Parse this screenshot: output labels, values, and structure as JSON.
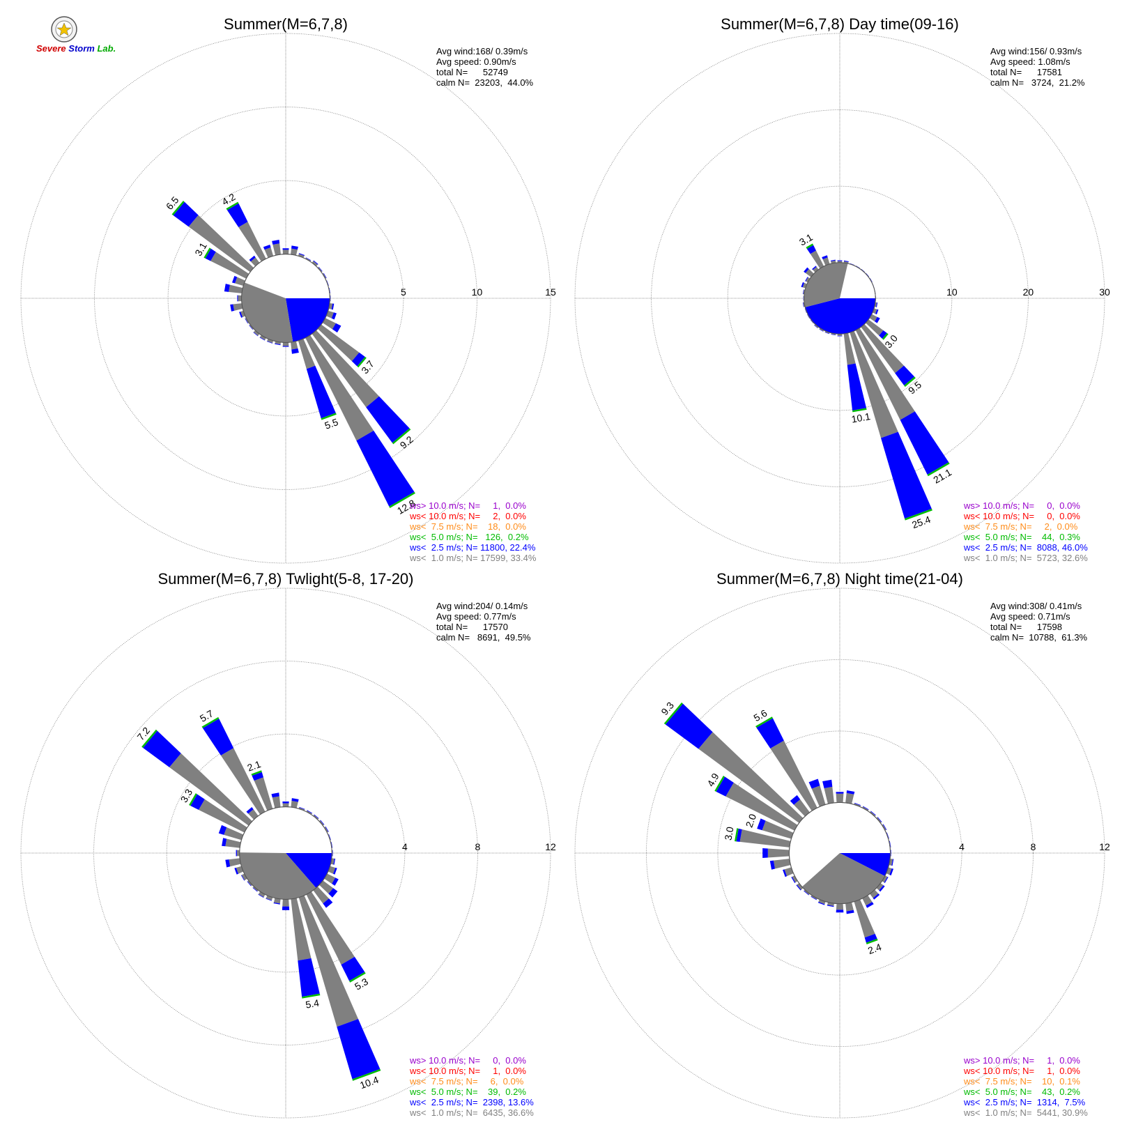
{
  "logo": {
    "line1": "Severe",
    "line2": "Storm",
    "line3": "Lab."
  },
  "colors": {
    "gt10": "#9900cc",
    "lt10": "#ff0000",
    "lt7_5": "#ff8c1a",
    "lt5": "#00bb00",
    "lt2_5": "#0000ff",
    "lt1": "#808080",
    "grid": "#777777"
  },
  "chart_data": [
    {
      "type": "windrose",
      "title": "Summer(M=6,7,8)",
      "rings": [
        5,
        10,
        15
      ],
      "rmax": 15,
      "calm_pct": 44.0,
      "stats": [
        "Avg wind:168/ 0.39m/s",
        "Avg speed: 0.90m/s",
        "total N=      52749",
        "calm N=  23203,  44.0%"
      ],
      "legend": [
        "ws> 10.0 m/s; N=     1,  0.0%",
        "ws< 10.0 m/s; N=     2,  0.0%",
        "ws<  7.5 m/s; N=    18,  0.0%",
        "ws<  5.0 m/s; N=   126,  0.2%",
        "ws<  2.5 m/s; N= 11800, 22.4%",
        "ws<  1.0 m/s; N= 17599, 33.4%"
      ],
      "petals": [
        {
          "dir": 0,
          "total": 0.4,
          "blue": 0.1
        },
        {
          "dir": 10,
          "total": 0.6,
          "blue": 0.2
        },
        {
          "dir": 20,
          "total": 0.2,
          "blue": 0.05
        },
        {
          "dir": 30,
          "total": 0.1,
          "blue": 0.03
        },
        {
          "dir": 40,
          "total": 0.2,
          "blue": 0.05
        },
        {
          "dir": 50,
          "total": 0.1,
          "blue": 0.03
        },
        {
          "dir": 60,
          "total": 0.1,
          "blue": 0.03
        },
        {
          "dir": 70,
          "total": 0.05,
          "blue": 0.02
        },
        {
          "dir": 80,
          "total": 0.05,
          "blue": 0.02
        },
        {
          "dir": 90,
          "total": 0.05,
          "blue": 0.02
        },
        {
          "dir": 100,
          "total": 0.3,
          "blue": 0.1
        },
        {
          "dir": 110,
          "total": 0.6,
          "blue": 0.2
        },
        {
          "dir": 120,
          "total": 1.2,
          "blue": 0.4
        },
        {
          "dir": 130,
          "total": 3.7,
          "blue": 0.5
        },
        {
          "dir": 140,
          "total": 9.2,
          "blue": 3.0
        },
        {
          "dir": 150,
          "total": 12.8,
          "blue": 5.0
        },
        {
          "dir": 160,
          "total": 5.5,
          "blue": 3.5
        },
        {
          "dir": 170,
          "total": 0.8,
          "blue": 0.3
        },
        {
          "dir": 180,
          "total": 0.3,
          "blue": 0.05
        },
        {
          "dir": 190,
          "total": 0.2,
          "blue": 0.05
        },
        {
          "dir": 200,
          "total": 0.2,
          "blue": 0.03
        },
        {
          "dir": 210,
          "total": 0.2,
          "blue": 0.03
        },
        {
          "dir": 220,
          "total": 0.2,
          "blue": 0.03
        },
        {
          "dir": 230,
          "total": 0.1,
          "blue": 0.03
        },
        {
          "dir": 240,
          "total": 0.1,
          "blue": 0.03
        },
        {
          "dir": 250,
          "total": 0.3,
          "blue": 0.1
        },
        {
          "dir": 260,
          "total": 0.8,
          "blue": 0.2
        },
        {
          "dir": 270,
          "total": 0.3,
          "blue": 0.05
        },
        {
          "dir": 280,
          "total": 1.2,
          "blue": 0.3
        },
        {
          "dir": 290,
          "total": 0.8,
          "blue": 0.2
        },
        {
          "dir": 300,
          "total": 3.1,
          "blue": 0.4
        },
        {
          "dir": 310,
          "total": 6.5,
          "blue": 1.3
        },
        {
          "dir": 320,
          "total": 0.6,
          "blue": 0.15
        },
        {
          "dir": 330,
          "total": 4.2,
          "blue": 1.4
        },
        {
          "dir": 340,
          "total": 0.8,
          "blue": 0.2
        },
        {
          "dir": 350,
          "total": 1.0,
          "blue": 0.25
        }
      ],
      "labels": [
        {
          "dir": 310,
          "text": "6.5"
        },
        {
          "dir": 330,
          "text": "4.2"
        },
        {
          "dir": 300,
          "text": "3.1"
        },
        {
          "dir": 130,
          "text": "3.7"
        },
        {
          "dir": 140,
          "text": "9.2"
        },
        {
          "dir": 150,
          "text": "12.8"
        },
        {
          "dir": 160,
          "text": "5.5"
        }
      ],
      "calm_pie": {
        "blue_pct": 22.4,
        "gray_pct": 33.4
      }
    },
    {
      "type": "windrose",
      "title": "Summer(M=6,7,8) Day time(09-16)",
      "rings": [
        10,
        20,
        30
      ],
      "rmax": 30,
      "calm_pct": 21.2,
      "stats": [
        "Avg wind:156/ 0.93m/s",
        "Avg speed: 1.08m/s",
        "total N=      17581",
        "calm N=   3724,  21.2%"
      ],
      "legend": [
        "ws> 10.0 m/s; N=     0,  0.0%",
        "ws< 10.0 m/s; N=     0,  0.0%",
        "ws<  7.5 m/s; N=     2,  0.0%",
        "ws<  5.0 m/s; N=    44,  0.3%",
        "ws<  2.5 m/s; N=  8088, 46.0%",
        "ws<  1.0 m/s; N=  5723, 32.6%"
      ],
      "petals": [
        {
          "dir": 0,
          "total": 0.3,
          "blue": 0.1
        },
        {
          "dir": 10,
          "total": 0.3,
          "blue": 0.1
        },
        {
          "dir": 20,
          "total": 0.1,
          "blue": 0.03
        },
        {
          "dir": 30,
          "total": 0.1,
          "blue": 0.03
        },
        {
          "dir": 40,
          "total": 0.1,
          "blue": 0.03
        },
        {
          "dir": 50,
          "total": 0.1,
          "blue": 0.03
        },
        {
          "dir": 60,
          "total": 0.1,
          "blue": 0.03
        },
        {
          "dir": 70,
          "total": 0.05,
          "blue": 0.02
        },
        {
          "dir": 80,
          "total": 0.05,
          "blue": 0.02
        },
        {
          "dir": 90,
          "total": 0.05,
          "blue": 0.02
        },
        {
          "dir": 100,
          "total": 0.3,
          "blue": 0.1
        },
        {
          "dir": 110,
          "total": 0.6,
          "blue": 0.2
        },
        {
          "dir": 120,
          "total": 1.2,
          "blue": 0.4
        },
        {
          "dir": 130,
          "total": 3.0,
          "blue": 0.6
        },
        {
          "dir": 140,
          "total": 9.5,
          "blue": 2.0
        },
        {
          "dir": 150,
          "total": 21.1,
          "blue": 8.0
        },
        {
          "dir": 160,
          "total": 25.4,
          "blue": 11.0
        },
        {
          "dir": 170,
          "total": 10.1,
          "blue": 6.0
        },
        {
          "dir": 180,
          "total": 0.3,
          "blue": 0.05
        },
        {
          "dir": 190,
          "total": 0.2,
          "blue": 0.05
        },
        {
          "dir": 200,
          "total": 0.2,
          "blue": 0.05
        },
        {
          "dir": 210,
          "total": 0.2,
          "blue": 0.05
        },
        {
          "dir": 220,
          "total": 0.2,
          "blue": 0.05
        },
        {
          "dir": 230,
          "total": 0.1,
          "blue": 0.03
        },
        {
          "dir": 240,
          "total": 0.1,
          "blue": 0.03
        },
        {
          "dir": 250,
          "total": 0.1,
          "blue": 0.03
        },
        {
          "dir": 260,
          "total": 0.2,
          "blue": 0.05
        },
        {
          "dir": 270,
          "total": 0.1,
          "blue": 0.03
        },
        {
          "dir": 280,
          "total": 0.2,
          "blue": 0.05
        },
        {
          "dir": 290,
          "total": 0.6,
          "blue": 0.2
        },
        {
          "dir": 300,
          "total": 0.4,
          "blue": 0.1
        },
        {
          "dir": 310,
          "total": 1.2,
          "blue": 0.3
        },
        {
          "dir": 320,
          "total": 0.6,
          "blue": 0.15
        },
        {
          "dir": 330,
          "total": 3.1,
          "blue": 0.8
        },
        {
          "dir": 340,
          "total": 1.2,
          "blue": 0.3
        },
        {
          "dir": 350,
          "total": 0.4,
          "blue": 0.1
        }
      ],
      "labels": [
        {
          "dir": 330,
          "text": "3.1"
        },
        {
          "dir": 130,
          "text": "3.0"
        },
        {
          "dir": 140,
          "text": "9.5"
        },
        {
          "dir": 150,
          "text": "21.1"
        },
        {
          "dir": 160,
          "text": "25.4"
        },
        {
          "dir": 170,
          "text": "10.1"
        }
      ],
      "calm_pie": {
        "blue_pct": 46.0,
        "gray_pct": 32.6
      }
    },
    {
      "type": "windrose",
      "title": "Summer(M=6,7,8) Twlight(5-8, 17-20)",
      "rings": [
        4,
        8,
        12
      ],
      "rmax": 12,
      "calm_pct": 49.5,
      "stats": [
        "Avg wind:204/ 0.14m/s",
        "Avg speed: 0.77m/s",
        "total N=      17570",
        "calm N=   8691,  49.5%"
      ],
      "legend": [
        "ws> 10.0 m/s; N=     0,  0.0%",
        "ws< 10.0 m/s; N=     1,  0.0%",
        "ws<  7.5 m/s; N=     6,  0.0%",
        "ws<  5.0 m/s; N=    39,  0.2%",
        "ws<  2.5 m/s; N=  2398, 13.6%",
        "ws<  1.0 m/s; N=  6435, 36.6%"
      ],
      "petals": [
        {
          "dir": 0,
          "total": 0.3,
          "blue": 0.1
        },
        {
          "dir": 10,
          "total": 0.5,
          "blue": 0.15
        },
        {
          "dir": 20,
          "total": 0.1,
          "blue": 0.03
        },
        {
          "dir": 30,
          "total": 0.1,
          "blue": 0.03
        },
        {
          "dir": 40,
          "total": 0.1,
          "blue": 0.03
        },
        {
          "dir": 50,
          "total": 0.1,
          "blue": 0.03
        },
        {
          "dir": 60,
          "total": 0.1,
          "blue": 0.03
        },
        {
          "dir": 70,
          "total": 0.05,
          "blue": 0.02
        },
        {
          "dir": 80,
          "total": 0.05,
          "blue": 0.02
        },
        {
          "dir": 90,
          "total": 0.05,
          "blue": 0.02
        },
        {
          "dir": 100,
          "total": 0.2,
          "blue": 0.05
        },
        {
          "dir": 110,
          "total": 0.4,
          "blue": 0.1
        },
        {
          "dir": 120,
          "total": 0.7,
          "blue": 0.2
        },
        {
          "dir": 130,
          "total": 1.0,
          "blue": 0.3
        },
        {
          "dir": 140,
          "total": 1.2,
          "blue": 0.3
        },
        {
          "dir": 150,
          "total": 5.3,
          "blue": 1.0
        },
        {
          "dir": 160,
          "total": 10.4,
          "blue": 3.0
        },
        {
          "dir": 170,
          "total": 5.4,
          "blue": 2.0
        },
        {
          "dir": 180,
          "total": 0.6,
          "blue": 0.2
        },
        {
          "dir": 190,
          "total": 0.3,
          "blue": 0.05
        },
        {
          "dir": 200,
          "total": 0.2,
          "blue": 0.03
        },
        {
          "dir": 210,
          "total": 0.2,
          "blue": 0.03
        },
        {
          "dir": 220,
          "total": 0.1,
          "blue": 0.03
        },
        {
          "dir": 230,
          "total": 0.1,
          "blue": 0.03
        },
        {
          "dir": 240,
          "total": 0.2,
          "blue": 0.03
        },
        {
          "dir": 250,
          "total": 0.4,
          "blue": 0.1
        },
        {
          "dir": 260,
          "total": 0.8,
          "blue": 0.2
        },
        {
          "dir": 270,
          "total": 0.2,
          "blue": 0.05
        },
        {
          "dir": 280,
          "total": 1.0,
          "blue": 0.2
        },
        {
          "dir": 290,
          "total": 1.3,
          "blue": 0.3
        },
        {
          "dir": 300,
          "total": 3.3,
          "blue": 0.5
        },
        {
          "dir": 310,
          "total": 7.2,
          "blue": 1.8
        },
        {
          "dir": 320,
          "total": 0.6,
          "blue": 0.15
        },
        {
          "dir": 330,
          "total": 5.7,
          "blue": 1.8
        },
        {
          "dir": 340,
          "total": 2.1,
          "blue": 0.3
        },
        {
          "dir": 350,
          "total": 0.8,
          "blue": 0.2
        }
      ],
      "labels": [
        {
          "dir": 310,
          "text": "7.2"
        },
        {
          "dir": 330,
          "text": "5.7"
        },
        {
          "dir": 300,
          "text": "3.3"
        },
        {
          "dir": 340,
          "text": "2.1"
        },
        {
          "dir": 150,
          "text": "5.3"
        },
        {
          "dir": 160,
          "text": "10.4"
        },
        {
          "dir": 170,
          "text": "5.4"
        }
      ],
      "calm_pie": {
        "blue_pct": 13.6,
        "gray_pct": 36.6
      }
    },
    {
      "type": "windrose",
      "title": "Summer(M=6,7,8) Night time(21-04)",
      "rings": [
        4,
        8,
        12
      ],
      "rmax": 12,
      "calm_pct": 61.3,
      "stats": [
        "Avg wind:308/ 0.41m/s",
        "Avg speed: 0.71m/s",
        "total N=      17598",
        "calm N=  10788,  61.3%"
      ],
      "legend": [
        "ws> 10.0 m/s; N=     1,  0.0%",
        "ws< 10.0 m/s; N=     1,  0.0%",
        "ws<  7.5 m/s; N=    10,  0.1%",
        "ws<  5.0 m/s; N=    43,  0.2%",
        "ws<  2.5 m/s; N=  1314,  7.5%",
        "ws<  1.0 m/s; N=  5441, 30.9%"
      ],
      "petals": [
        {
          "dir": 0,
          "total": 0.6,
          "blue": 0.1
        },
        {
          "dir": 10,
          "total": 0.7,
          "blue": 0.15
        },
        {
          "dir": 20,
          "total": 0.1,
          "blue": 0.03
        },
        {
          "dir": 30,
          "total": 0.1,
          "blue": 0.03
        },
        {
          "dir": 40,
          "total": 0.1,
          "blue": 0.03
        },
        {
          "dir": 50,
          "total": 0.1,
          "blue": 0.03
        },
        {
          "dir": 60,
          "total": 0.1,
          "blue": 0.03
        },
        {
          "dir": 70,
          "total": 0.05,
          "blue": 0.02
        },
        {
          "dir": 80,
          "total": 0.05,
          "blue": 0.02
        },
        {
          "dir": 90,
          "total": 0.05,
          "blue": 0.02
        },
        {
          "dir": 100,
          "total": 0.2,
          "blue": 0.05
        },
        {
          "dir": 110,
          "total": 0.3,
          "blue": 0.1
        },
        {
          "dir": 120,
          "total": 0.2,
          "blue": 0.05
        },
        {
          "dir": 130,
          "total": 0.3,
          "blue": 0.1
        },
        {
          "dir": 140,
          "total": 0.4,
          "blue": 0.1
        },
        {
          "dir": 150,
          "total": 0.6,
          "blue": 0.15
        },
        {
          "dir": 160,
          "total": 2.4,
          "blue": 0.3
        },
        {
          "dir": 170,
          "total": 0.6,
          "blue": 0.15
        },
        {
          "dir": 180,
          "total": 0.5,
          "blue": 0.15
        },
        {
          "dir": 190,
          "total": 0.2,
          "blue": 0.05
        },
        {
          "dir": 200,
          "total": 0.2,
          "blue": 0.05
        },
        {
          "dir": 210,
          "total": 0.1,
          "blue": 0.03
        },
        {
          "dir": 220,
          "total": 0.1,
          "blue": 0.03
        },
        {
          "dir": 230,
          "total": 0.2,
          "blue": 0.05
        },
        {
          "dir": 240,
          "total": 0.2,
          "blue": 0.05
        },
        {
          "dir": 250,
          "total": 0.5,
          "blue": 0.1
        },
        {
          "dir": 260,
          "total": 1.1,
          "blue": 0.2
        },
        {
          "dir": 270,
          "total": 1.5,
          "blue": 0.3
        },
        {
          "dir": 280,
          "total": 3.0,
          "blue": 0.2
        },
        {
          "dir": 290,
          "total": 2.0,
          "blue": 0.3
        },
        {
          "dir": 300,
          "total": 4.9,
          "blue": 0.6
        },
        {
          "dir": 310,
          "total": 9.3,
          "blue": 2.3
        },
        {
          "dir": 320,
          "total": 1.2,
          "blue": 0.3
        },
        {
          "dir": 330,
          "total": 5.6,
          "blue": 1.4
        },
        {
          "dir": 340,
          "total": 1.5,
          "blue": 0.4
        },
        {
          "dir": 350,
          "total": 1.3,
          "blue": 0.4
        }
      ],
      "labels": [
        {
          "dir": 310,
          "text": "9.3"
        },
        {
          "dir": 330,
          "text": "5.6"
        },
        {
          "dir": 300,
          "text": "4.9"
        },
        {
          "dir": 290,
          "text": "2.0"
        },
        {
          "dir": 280,
          "text": "3.0"
        },
        {
          "dir": 160,
          "text": "2.4"
        }
      ],
      "calm_pie": {
        "blue_pct": 7.5,
        "gray_pct": 30.9
      }
    }
  ]
}
